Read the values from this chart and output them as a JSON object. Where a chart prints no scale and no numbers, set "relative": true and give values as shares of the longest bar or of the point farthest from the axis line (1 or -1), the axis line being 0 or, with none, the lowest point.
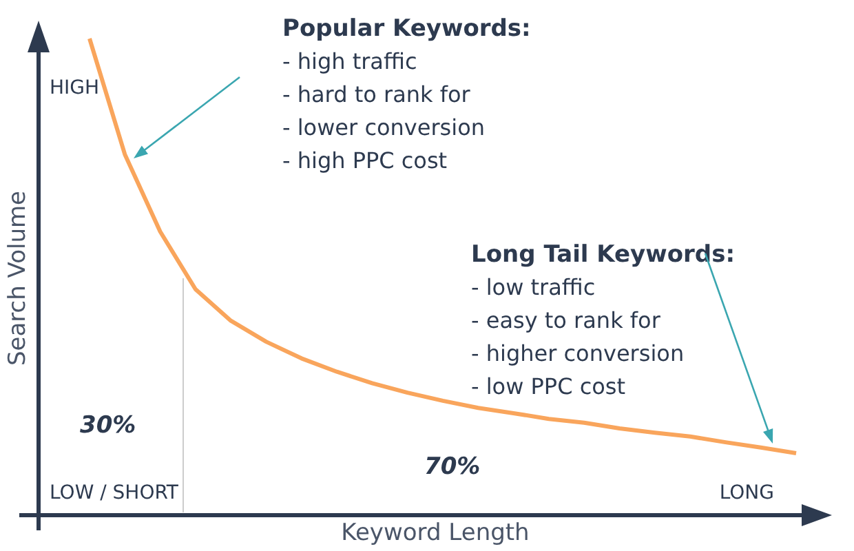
{
  "chart_data": {
    "type": "line",
    "relative": true,
    "xlabel": "Keyword Length",
    "ylabel": "Search Volume",
    "categories": [
      null,
      null,
      null,
      null,
      null,
      null,
      null,
      null,
      null,
      null,
      null,
      null,
      null,
      null,
      null,
      null,
      null,
      null,
      null,
      null,
      null
    ],
    "marker": "none",
    "line_style": "solid",
    "series": [
      {
        "color": "#f9a55c",
        "values": [
          1.0,
          0.757,
          0.595,
          0.474,
          0.408,
          0.364,
          0.329,
          0.301,
          0.277,
          0.257,
          0.24,
          0.225,
          0.214,
          0.202,
          0.194,
          0.182,
          0.173,
          0.165,
          0.153,
          0.142,
          0.13
        ]
      }
    ],
    "annotations": [
      "HIGH",
      "LOW / SHORT",
      "LONG",
      "30%",
      "70%",
      "Popular Keywords:\n- high traffic\n- hard to rank for\n- lower conversion\n- high PPC cost",
      "Long Tail Keywords:\n- low traffic\n- easy to rank for\n- higher conversion\n- low PPC cost"
    ]
  }
}
